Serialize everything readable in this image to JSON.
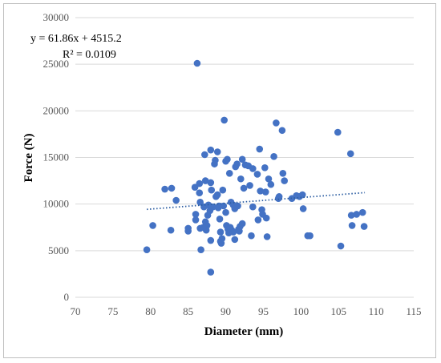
{
  "chart_data": {
    "type": "scatter",
    "xlabel": "Diameter (mm)",
    "ylabel": "Force (N)",
    "xlim": [
      70,
      115
    ],
    "ylim": [
      0,
      30000
    ],
    "xticks": [
      70,
      75,
      80,
      85,
      90,
      95,
      100,
      105,
      110,
      115
    ],
    "yticks": [
      0,
      5000,
      10000,
      15000,
      20000,
      25000,
      30000
    ],
    "grid": "horizontal",
    "legend": "none",
    "colors": {
      "points": "#4472c4",
      "trendline": "#2e5fa3",
      "gridline": "#d9d9d9"
    },
    "trendline": {
      "type": "linear",
      "slope": 61.86,
      "intercept": 4515.2,
      "x_range": [
        79.5,
        108.5
      ],
      "equation_label": "y = 61.86x + 4515.2",
      "r2_label": "R² = 0.0109"
    },
    "points": [
      [
        79.5,
        5100
      ],
      [
        80.3,
        7700
      ],
      [
        81.9,
        11600
      ],
      [
        82.7,
        7200
      ],
      [
        82.8,
        11700
      ],
      [
        83.4,
        10400
      ],
      [
        85.0,
        7100
      ],
      [
        85.0,
        7400
      ],
      [
        85.9,
        11800
      ],
      [
        86.0,
        8900
      ],
      [
        86.0,
        8300
      ],
      [
        86.2,
        25100
      ],
      [
        86.5,
        12200
      ],
      [
        86.5,
        11200
      ],
      [
        86.6,
        10200
      ],
      [
        86.6,
        7400
      ],
      [
        86.7,
        5100
      ],
      [
        87.0,
        7500
      ],
      [
        87.1,
        9700
      ],
      [
        87.2,
        15300
      ],
      [
        87.3,
        12500
      ],
      [
        87.3,
        8100
      ],
      [
        87.4,
        7200
      ],
      [
        87.5,
        7700
      ],
      [
        87.6,
        8800
      ],
      [
        87.7,
        9900
      ],
      [
        87.9,
        9300
      ],
      [
        88.0,
        6100
      ],
      [
        88.0,
        2700
      ],
      [
        88.0,
        12300
      ],
      [
        88.0,
        15800
      ],
      [
        88.1,
        11500
      ],
      [
        88.3,
        9700
      ],
      [
        88.5,
        14300
      ],
      [
        88.6,
        14700
      ],
      [
        88.7,
        10800
      ],
      [
        88.9,
        15600
      ],
      [
        88.9,
        11000
      ],
      [
        89.0,
        9600
      ],
      [
        89.1,
        9800
      ],
      [
        89.2,
        8400
      ],
      [
        89.3,
        7000
      ],
      [
        89.3,
        6000
      ],
      [
        89.4,
        5800
      ],
      [
        89.5,
        6300
      ],
      [
        89.6,
        11500
      ],
      [
        89.7,
        9800
      ],
      [
        89.8,
        19000
      ],
      [
        90.0,
        14600
      ],
      [
        90.0,
        9100
      ],
      [
        90.1,
        7700
      ],
      [
        90.2,
        14800
      ],
      [
        90.3,
        7300
      ],
      [
        90.4,
        6900
      ],
      [
        90.5,
        13300
      ],
      [
        90.6,
        7500
      ],
      [
        90.7,
        10200
      ],
      [
        90.8,
        7200
      ],
      [
        91.0,
        9900
      ],
      [
        91.0,
        7000
      ],
      [
        91.2,
        9500
      ],
      [
        91.2,
        6200
      ],
      [
        91.3,
        14000
      ],
      [
        91.5,
        14300
      ],
      [
        91.6,
        9800
      ],
      [
        91.7,
        7300
      ],
      [
        91.8,
        7100
      ],
      [
        91.9,
        7600
      ],
      [
        92.0,
        12700
      ],
      [
        92.2,
        14800
      ],
      [
        92.2,
        7900
      ],
      [
        92.4,
        11700
      ],
      [
        92.6,
        14200
      ],
      [
        93.0,
        14100
      ],
      [
        93.2,
        12000
      ],
      [
        93.4,
        6600
      ],
      [
        93.6,
        13800
      ],
      [
        93.6,
        9700
      ],
      [
        94.2,
        13200
      ],
      [
        94.3,
        8300
      ],
      [
        94.5,
        15900
      ],
      [
        94.6,
        11400
      ],
      [
        94.8,
        9400
      ],
      [
        94.9,
        8900
      ],
      [
        95.2,
        13900
      ],
      [
        95.3,
        11300
      ],
      [
        95.4,
        8500
      ],
      [
        95.5,
        6500
      ],
      [
        95.7,
        12700
      ],
      [
        96.0,
        12100
      ],
      [
        96.4,
        15100
      ],
      [
        96.7,
        18700
      ],
      [
        97.0,
        10600
      ],
      [
        97.1,
        10800
      ],
      [
        97.5,
        17900
      ],
      [
        97.6,
        13300
      ],
      [
        97.8,
        12500
      ],
      [
        98.8,
        10600
      ],
      [
        99.4,
        10900
      ],
      [
        99.8,
        10800
      ],
      [
        100.2,
        11000
      ],
      [
        100.3,
        9500
      ],
      [
        100.9,
        6600
      ],
      [
        101.2,
        6600
      ],
      [
        104.9,
        17700
      ],
      [
        105.3,
        5500
      ],
      [
        106.6,
        15400
      ],
      [
        106.7,
        8800
      ],
      [
        106.8,
        7700
      ],
      [
        107.4,
        8900
      ],
      [
        108.2,
        9100
      ],
      [
        108.4,
        7600
      ]
    ]
  }
}
